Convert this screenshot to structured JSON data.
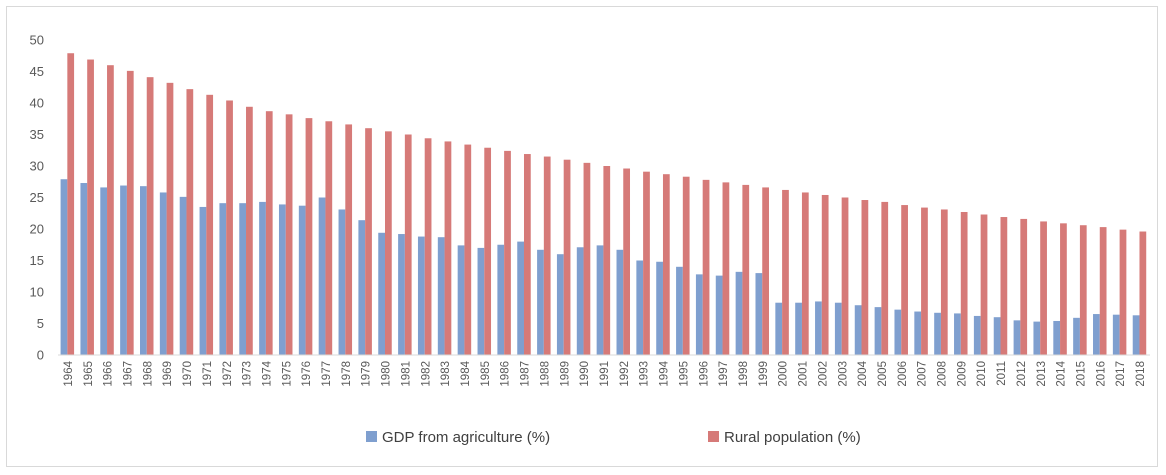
{
  "chart_data": {
    "type": "bar",
    "title": "",
    "xlabel": "",
    "ylabel": "",
    "ylim": [
      0,
      50
    ],
    "yticks": [
      0,
      5,
      10,
      15,
      20,
      25,
      30,
      35,
      40,
      45,
      50
    ],
    "grid": false,
    "legend_position": "bottom",
    "categories": [
      "1964",
      "1965",
      "1966",
      "1967",
      "1968",
      "1969",
      "1970",
      "1971",
      "1972",
      "1973",
      "1974",
      "1975",
      "1976",
      "1977",
      "1978",
      "1979",
      "1980",
      "1981",
      "1982",
      "1983",
      "1984",
      "1985",
      "1986",
      "1987",
      "1988",
      "1989",
      "1990",
      "1991",
      "1992",
      "1993",
      "1994",
      "1995",
      "1996",
      "1997",
      "1998",
      "1999",
      "2000",
      "2001",
      "2002",
      "2003",
      "2004",
      "2005",
      "2006",
      "2007",
      "2008",
      "2009",
      "2010",
      "2011",
      "2012",
      "2013",
      "2014",
      "2015",
      "2016",
      "2017",
      "2018"
    ],
    "series": [
      {
        "name": "GDP from agriculture (%)",
        "color": "#7f9fcf",
        "values": [
          27.9,
          27.3,
          26.6,
          26.9,
          26.8,
          25.8,
          25.1,
          23.5,
          24.1,
          24.1,
          24.3,
          23.9,
          23.7,
          25.0,
          23.1,
          21.4,
          19.4,
          19.2,
          18.8,
          18.7,
          17.4,
          17.0,
          17.5,
          18.0,
          16.7,
          16.0,
          17.1,
          17.4,
          16.7,
          15.0,
          14.8,
          14.0,
          12.8,
          12.6,
          13.2,
          13.0,
          8.3,
          8.3,
          8.5,
          8.3,
          7.9,
          7.6,
          7.2,
          6.9,
          6.7,
          6.6,
          6.2,
          6.0,
          5.5,
          5.3,
          5.4,
          5.9,
          6.5,
          6.4,
          6.3
        ]
      },
      {
        "name": "Rural population (%)",
        "color": "#d67a78",
        "values": [
          47.9,
          46.9,
          46.0,
          45.1,
          44.1,
          43.2,
          42.2,
          41.3,
          40.4,
          39.4,
          38.7,
          38.2,
          37.6,
          37.1,
          36.6,
          36.0,
          35.5,
          35.0,
          34.4,
          33.9,
          33.4,
          32.9,
          32.4,
          31.9,
          31.5,
          31.0,
          30.5,
          30.0,
          29.6,
          29.1,
          28.7,
          28.3,
          27.8,
          27.4,
          27.0,
          26.6,
          26.2,
          25.8,
          25.4,
          25.0,
          24.6,
          24.3,
          23.8,
          23.4,
          23.1,
          22.7,
          22.3,
          21.9,
          21.6,
          21.2,
          20.9,
          20.6,
          20.3,
          19.9,
          19.6
        ]
      }
    ]
  }
}
